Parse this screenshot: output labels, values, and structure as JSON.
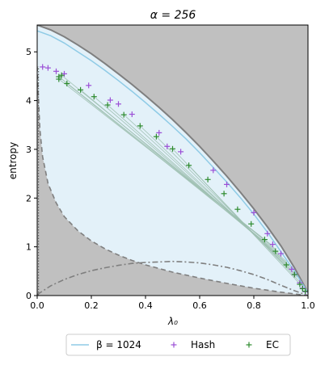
{
  "chart_data": {
    "type": "line",
    "title": "α = 256",
    "xlabel": "λ₀",
    "ylabel": "entropy",
    "xlim": [
      0,
      1
    ],
    "ylim": [
      0,
      5.55
    ],
    "xticks": [
      "0.0",
      "0.2",
      "0.4",
      "0.6",
      "0.8",
      "1.0"
    ],
    "yticks": [
      "0",
      "1",
      "2",
      "3",
      "4",
      "5"
    ],
    "grid": false,
    "legend_position": "bottom-outside",
    "colors": {
      "infeasible_region": "#c0c0c0",
      "feasible_region": "#e3f1f9",
      "beta_line": "#8fcbe6",
      "fan_lines": "#9dbfb0",
      "hash": "#9b4fd6",
      "ec": "#2e8b2e",
      "bounds": "#7f7f7f"
    },
    "series": [
      {
        "name": "β = 1024",
        "style": "line",
        "x": [
          0.0,
          0.05,
          0.1,
          0.15,
          0.2,
          0.25,
          0.3,
          0.35,
          0.4,
          0.45,
          0.5,
          0.55,
          0.6,
          0.65,
          0.7,
          0.75,
          0.8,
          0.85,
          0.9,
          0.95,
          1.0
        ],
        "y": [
          5.43,
          5.33,
          5.18,
          5.0,
          4.82,
          4.62,
          4.41,
          4.19,
          3.96,
          3.72,
          3.47,
          3.21,
          2.93,
          2.63,
          2.33,
          2.01,
          1.67,
          1.3,
          0.9,
          0.5,
          0.06
        ]
      },
      {
        "name": "Hash",
        "style": "marker-plus",
        "x": [
          0.02,
          0.04,
          0.07,
          0.1,
          0.19,
          0.27,
          0.3,
          0.35,
          0.45,
          0.48,
          0.53,
          0.65,
          0.7,
          0.8,
          0.85,
          0.87,
          0.9,
          0.94,
          0.95,
          0.97,
          0.98,
          0.99
        ],
        "y": [
          4.69,
          4.67,
          4.6,
          4.55,
          4.31,
          4.01,
          3.93,
          3.72,
          3.34,
          3.06,
          2.95,
          2.57,
          2.28,
          1.7,
          1.27,
          1.05,
          0.86,
          0.54,
          0.43,
          0.26,
          0.15,
          0.08
        ]
      },
      {
        "name": "EC",
        "style": "marker-plus",
        "x": [
          0.08,
          0.08,
          0.09,
          0.11,
          0.16,
          0.21,
          0.26,
          0.32,
          0.38,
          0.44,
          0.5,
          0.56,
          0.63,
          0.69,
          0.74,
          0.79,
          0.84,
          0.88,
          0.92,
          0.95,
          0.97,
          0.98,
          0.99
        ],
        "y": [
          4.44,
          4.49,
          4.52,
          4.35,
          4.22,
          4.08,
          3.91,
          3.71,
          3.48,
          3.26,
          3.01,
          2.67,
          2.38,
          2.09,
          1.77,
          1.47,
          1.15,
          0.91,
          0.63,
          0.43,
          0.23,
          0.14,
          0.09
        ]
      }
    ],
    "fan_lines": {
      "from": [
        0.08,
        0.08,
        0.09,
        0.11,
        0.16,
        0.21,
        0.26,
        0.32,
        0.38,
        0.44,
        0.5,
        0.56
      ],
      "from_y": [
        4.44,
        4.49,
        4.52,
        4.35,
        4.22,
        4.08,
        3.91,
        3.71,
        3.48,
        3.26,
        3.01,
        2.67
      ],
      "to_x": [
        0.84,
        0.86,
        0.88,
        0.89,
        0.9,
        0.92,
        0.93,
        0.94,
        0.95,
        0.96,
        0.97,
        0.98
      ],
      "to_y": [
        1.15,
        1.06,
        0.95,
        0.88,
        0.8,
        0.7,
        0.62,
        0.55,
        0.46,
        0.38,
        0.28,
        0.18
      ]
    },
    "upper_bound": {
      "x": [
        0.0,
        0.05,
        0.1,
        0.15,
        0.2,
        0.25,
        0.3,
        0.35,
        0.4,
        0.45,
        0.5,
        0.55,
        0.6,
        0.65,
        0.7,
        0.75,
        0.8,
        0.85,
        0.9,
        0.95,
        1.0
      ],
      "y": [
        5.55,
        5.45,
        5.31,
        5.14,
        4.96,
        4.76,
        4.55,
        4.33,
        4.1,
        3.86,
        3.61,
        3.34,
        3.06,
        2.76,
        2.45,
        2.12,
        1.78,
        1.41,
        1.02,
        0.57,
        0.06
      ]
    },
    "lower_dashed": {
      "x": [
        0.0,
        0.005,
        0.01,
        0.02,
        0.04,
        0.07,
        0.1,
        0.15,
        0.2,
        0.25,
        0.3,
        0.35,
        0.4,
        0.5,
        0.6,
        0.7,
        0.8,
        0.9,
        1.0
      ],
      "y": [
        4.7,
        4.0,
        3.4,
        2.85,
        2.3,
        1.9,
        1.62,
        1.33,
        1.12,
        0.96,
        0.83,
        0.72,
        0.63,
        0.48,
        0.36,
        0.25,
        0.15,
        0.07,
        0.0
      ]
    },
    "dashdot_curve": {
      "x": [
        0.0,
        0.05,
        0.1,
        0.15,
        0.2,
        0.25,
        0.3,
        0.35,
        0.4,
        0.45,
        0.5,
        0.55,
        0.6,
        0.65,
        0.7,
        0.75,
        0.8,
        0.85,
        0.9,
        0.95,
        1.0
      ],
      "y": [
        0.02,
        0.2,
        0.33,
        0.43,
        0.51,
        0.57,
        0.62,
        0.66,
        0.68,
        0.69,
        0.7,
        0.69,
        0.67,
        0.63,
        0.58,
        0.51,
        0.43,
        0.33,
        0.21,
        0.1,
        0.0
      ]
    }
  }
}
